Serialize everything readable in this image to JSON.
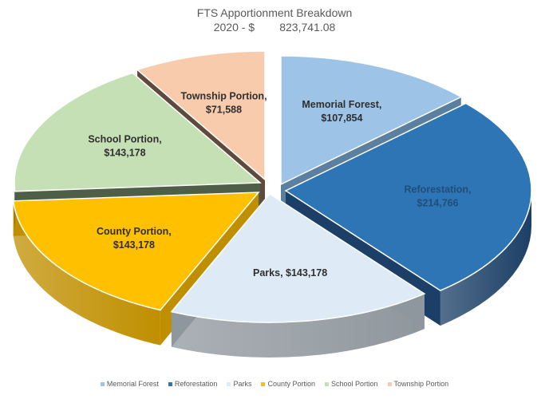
{
  "chart_data": {
    "type": "pie",
    "title": "FTS Apportionment Breakdown",
    "subtitle": "2020 - $        823,741.08",
    "legend_position": "bottom",
    "categories": [
      "Memorial Forest",
      "Reforestation",
      "Parks",
      "County Portion",
      "School Portion",
      "Township Portion"
    ],
    "values": [
      107854,
      214766,
      143178,
      143178,
      143178,
      71588
    ],
    "data_labels": [
      [
        "Memorial Forest,",
        "$107,854"
      ],
      [
        "Reforestation,",
        "$214,766"
      ],
      [
        "Parks,  $143,178"
      ],
      [
        "County Portion,",
        "$143,178"
      ],
      [
        "School Portion,",
        "$143,178"
      ],
      [
        "Township Portion,",
        "$71,588"
      ]
    ],
    "colors": [
      "#9DC3E6",
      "#2E75B6",
      "#DEEBF7",
      "#FFC000",
      "#C5E0B4",
      "#F8CBAD"
    ],
    "side_colors": [
      "#5B7F9F",
      "#1B3F66",
      "#8F979E",
      "#C08F00",
      "#4E5E47",
      "#5F4A3E"
    ],
    "label_colors": [
      "#2F2F2F",
      "#1F4E79",
      "#2F2F2F",
      "#2F2F2F",
      "#2F2F2F",
      "#2F2F2F"
    ]
  }
}
